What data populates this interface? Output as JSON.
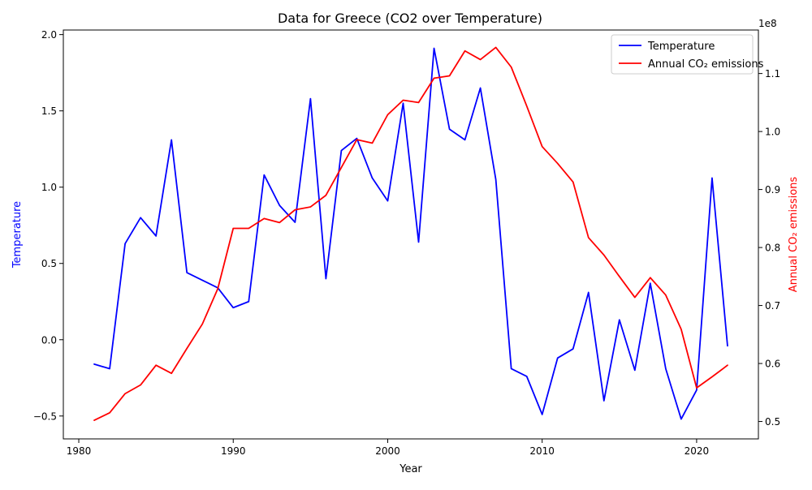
{
  "chart_data": {
    "type": "line",
    "title": "Data for Greece (CO2 over Temperature)",
    "xlabel": "Year",
    "ylabel_left": "Temperature",
    "ylabel_right": "Annual CO₂ emissions",
    "right_axis_multiplier": "1e8",
    "xlim": [
      1979,
      2024
    ],
    "ylim_left": [
      -0.65,
      2.03
    ],
    "ylim_right": [
      47000000,
      117500000
    ],
    "x_ticks": [
      1980,
      1990,
      2000,
      2010,
      2020
    ],
    "y_ticks_left": [
      -0.5,
      0.0,
      0.5,
      1.0,
      1.5,
      2.0
    ],
    "y_tick_labels_left": [
      "−0.5",
      "0.0",
      "0.5",
      "1.0",
      "1.5",
      "2.0"
    ],
    "y_ticks_right": [
      50000000,
      60000000,
      70000000,
      80000000,
      90000000,
      100000000,
      110000000
    ],
    "y_tick_labels_right": [
      "0.5",
      "0.6",
      "0.7",
      "0.8",
      "0.9",
      "1.0",
      "1.1"
    ],
    "grid": false,
    "legend_position": "top-right",
    "x": [
      1981,
      1982,
      1983,
      1984,
      1985,
      1986,
      1987,
      1988,
      1989,
      1990,
      1991,
      1992,
      1993,
      1994,
      1995,
      1996,
      1997,
      1998,
      1999,
      2000,
      2001,
      2002,
      2003,
      2004,
      2005,
      2006,
      2007,
      2008,
      2009,
      2010,
      2011,
      2012,
      2013,
      2014,
      2015,
      2016,
      2017,
      2018,
      2019,
      2020,
      2021,
      2022
    ],
    "series": [
      {
        "name": "Temperature",
        "axis": "left",
        "color": "#0000ff",
        "values": [
          -0.16,
          -0.19,
          0.63,
          0.8,
          0.68,
          1.31,
          0.44,
          0.39,
          0.34,
          0.21,
          0.25,
          1.08,
          0.88,
          0.77,
          1.58,
          0.4,
          1.24,
          1.32,
          1.06,
          0.91,
          1.55,
          0.64,
          1.91,
          1.38,
          1.31,
          1.65,
          1.05,
          -0.19,
          -0.24,
          -0.49,
          -0.12,
          -0.06,
          0.31,
          -0.4,
          0.13,
          -0.2,
          0.37,
          -0.19,
          -0.52,
          -0.33,
          1.06,
          -0.04
        ]
      },
      {
        "name": "Annual CO₂ emissions",
        "axis": "right",
        "color": "#ff0000",
        "values": [
          50200000,
          51500000,
          54800000,
          56300000,
          59700000,
          58300000,
          62600000,
          66800000,
          72900000,
          83300000,
          83300000,
          85000000,
          84300000,
          86500000,
          87000000,
          89000000,
          93800000,
          98600000,
          98000000,
          102900000,
          105400000,
          105000000,
          109200000,
          109600000,
          113900000,
          112400000,
          114500000,
          111100000,
          104400000,
          97400000,
          94500000,
          91300000,
          81700000,
          78700000,
          75000000,
          71400000,
          74800000,
          71800000,
          65900000,
          55800000,
          57700000,
          59700000
        ]
      }
    ]
  }
}
